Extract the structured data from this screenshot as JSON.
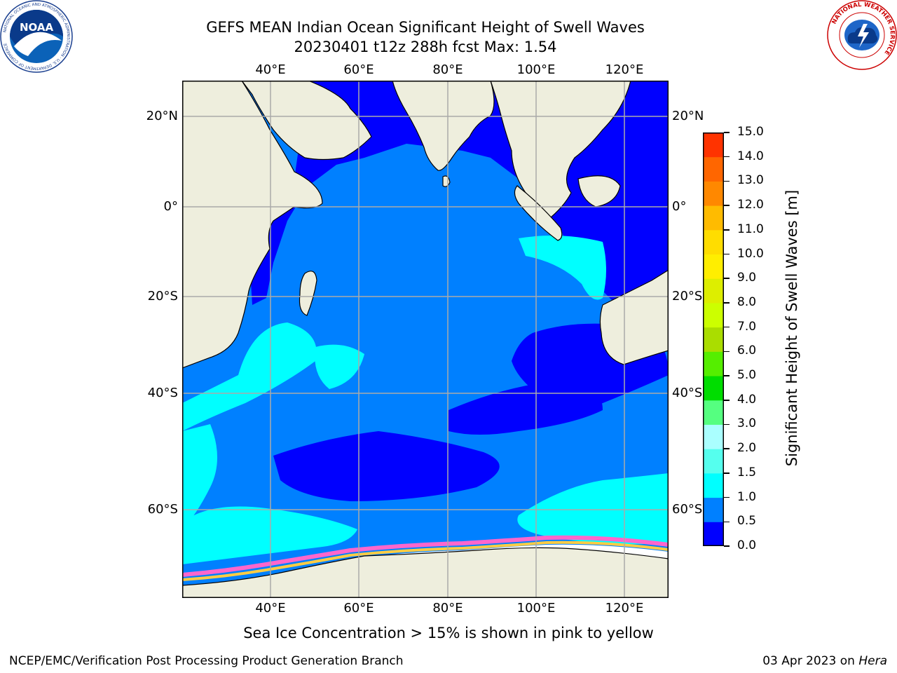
{
  "title": {
    "line1": "GEFS MEAN Indian Ocean Significant Height of Swell Waves",
    "line2": "20230401 t12z 288h fcst   Max: 1.54"
  },
  "logos": {
    "left": {
      "text": "NOAA",
      "ring": "NATIONAL OCEANIC AND ATMOSPHERIC ADMINISTRATION · U.S. DEPARTMENT OF COMMERCE",
      "icon": "noaa-logo"
    },
    "right": {
      "ring": "NATIONAL WEATHER SERVICE",
      "icon": "nws-logo"
    }
  },
  "map": {
    "longitude_labels": [
      "40°E",
      "60°E",
      "80°E",
      "100°E",
      "120°E"
    ],
    "latitude_labels": [
      "20°N",
      "0°",
      "20°S",
      "40°S",
      "60°S"
    ],
    "extent": {
      "lon": [
        20,
        130
      ],
      "lat": [
        -75,
        28
      ]
    },
    "colors": {
      "land": "#eeeedd",
      "coast": "#000000",
      "grid": "#aaaaaa",
      "ice": "#ffffff"
    }
  },
  "colorbar": {
    "label": "Significant Height of Swell Waves [m]",
    "ticks": [
      "0.0",
      "0.5",
      "1.0",
      "1.5",
      "2.0",
      "3.0",
      "4.0",
      "5.0",
      "6.0",
      "7.0",
      "8.0",
      "9.0",
      "10.0",
      "11.0",
      "12.0",
      "13.0",
      "14.0",
      "15.0"
    ],
    "colors": [
      "#0000ff",
      "#0080ff",
      "#00ffff",
      "#55ffee",
      "#aaffff",
      "#55ff80",
      "#00dd00",
      "#55ee00",
      "#aadd00",
      "#ccff00",
      "#ddee00",
      "#ffee00",
      "#ffdd00",
      "#ffbb00",
      "#ff8800",
      "#ff6600",
      "#ff3300"
    ]
  },
  "note": "Sea Ice Concentration > 15% is shown in pink to yellow",
  "footer": {
    "left": "NCEP/EMC/Verification Post Processing Product Generation Branch",
    "right_date": "03 Apr 2023 on",
    "right_machine": "Hera"
  }
}
